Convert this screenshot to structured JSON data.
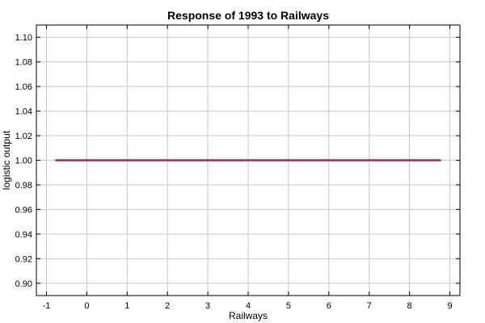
{
  "chart_data": {
    "type": "line",
    "title": "Response of 1993 to Railways",
    "xlabel": "Railways",
    "ylabel": "logistic output",
    "xlim": [
      -1.25,
      9.25
    ],
    "ylim": [
      0.89,
      1.11
    ],
    "xticks": [
      -1,
      0,
      1,
      2,
      3,
      4,
      5,
      6,
      7,
      8,
      9
    ],
    "yticks": [
      0.9,
      0.92,
      0.94,
      0.96,
      0.98,
      1.0,
      1.02,
      1.04,
      1.06,
      1.08,
      1.1
    ],
    "xtick_labels": [
      "-1",
      "0",
      "1",
      "2",
      "3",
      "4",
      "5",
      "6",
      "7",
      "8",
      "9"
    ],
    "ytick_labels": [
      "0.90",
      "0.92",
      "0.94",
      "0.96",
      "0.98",
      "1.00",
      "1.02",
      "1.04",
      "1.06",
      "1.08",
      "1.10"
    ],
    "grid": true,
    "series": [
      {
        "x": [
          -0.78,
          8.78
        ],
        "y": [
          1.0,
          1.0
        ],
        "color": "#c0185a"
      }
    ]
  }
}
